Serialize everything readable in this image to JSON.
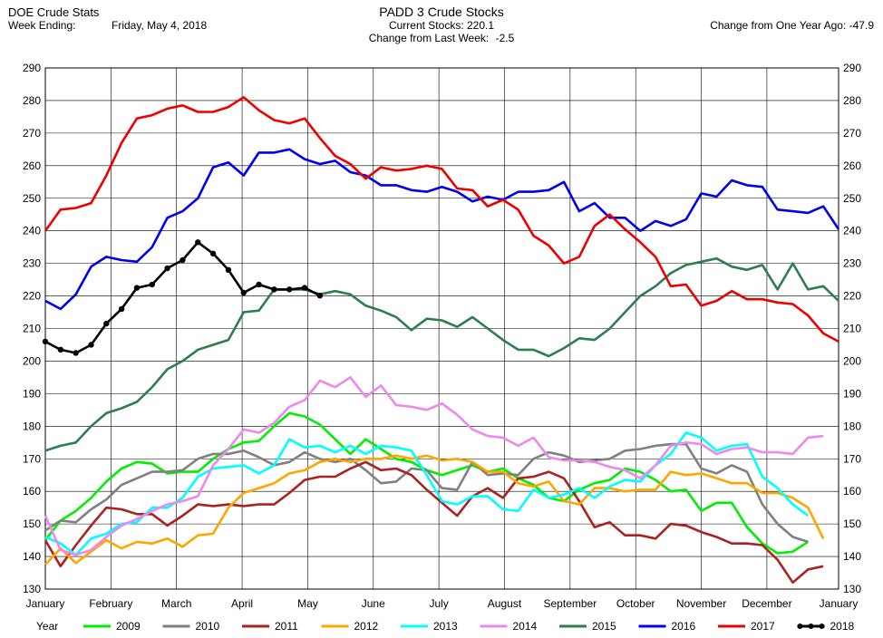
{
  "header": {
    "app_title": "DOE Crude Stats",
    "week_ending_label": "Week Ending:",
    "week_ending_value": "Friday, May 4, 2018",
    "chart_title": "PADD 3 Crude Stocks",
    "current_stocks_label": "Current Stocks:",
    "current_stocks_value": "220.1",
    "change_week_label": "Change from Last Week:",
    "change_week_value": "-2.5",
    "change_year_label": "Change from One Year Ago:",
    "change_year_value": "-47.9"
  },
  "chart_data": {
    "type": "line",
    "title": "PADD 3 Crude Stocks",
    "ylim": [
      130,
      290
    ],
    "y_ticks": [
      130,
      140,
      150,
      160,
      170,
      180,
      190,
      200,
      210,
      220,
      230,
      240,
      250,
      260,
      270,
      280,
      290
    ],
    "x_range": [
      0,
      52
    ],
    "x_tick_labels": [
      {
        "label": "January",
        "week": 0
      },
      {
        "label": "February",
        "week": 4.3
      },
      {
        "label": "March",
        "week": 8.6
      },
      {
        "label": "April",
        "week": 12.9
      },
      {
        "label": "May",
        "week": 17.2
      },
      {
        "label": "June",
        "week": 21.5
      },
      {
        "label": "July",
        "week": 25.8
      },
      {
        "label": "August",
        "week": 30.1
      },
      {
        "label": "September",
        "week": 34.4
      },
      {
        "label": "October",
        "week": 38.7
      },
      {
        "label": "November",
        "week": 43.0
      },
      {
        "label": "December",
        "week": 47.3
      },
      {
        "label": "January",
        "week": 52
      }
    ],
    "grid": true,
    "legend_position": "bottom",
    "legend_title": "Year",
    "series": [
      {
        "name": "2009",
        "color": "#00ee00",
        "markers": false,
        "values": [
          145,
          151,
          154,
          158,
          163,
          167,
          169,
          168.5,
          165.5,
          166,
          166,
          170,
          173,
          175,
          175.5,
          180,
          184,
          183,
          180.5,
          176,
          171.5,
          176,
          173,
          170,
          169,
          166.5,
          165,
          166.5,
          168,
          166,
          167,
          164,
          162,
          158,
          157,
          160.5,
          162.5,
          163.5,
          167,
          166,
          163.5,
          160,
          160.5,
          154,
          156.5,
          156.5,
          149,
          144,
          141,
          141.5,
          144.5
        ]
      },
      {
        "name": "2010",
        "color": "#808080",
        "markers": false,
        "values": [
          148,
          151,
          150.5,
          154.5,
          157.5,
          162,
          164,
          166,
          166,
          166.5,
          170,
          171.5,
          171.5,
          172.5,
          170.5,
          168,
          169,
          172,
          170,
          169,
          170,
          166.5,
          162.5,
          163,
          167,
          166.5,
          161,
          160.5,
          169,
          165,
          165.5,
          165,
          170,
          172,
          171,
          169,
          169.5,
          170,
          172.5,
          173,
          174,
          174.5,
          174.5,
          167,
          165.5,
          168,
          166,
          156,
          150,
          146,
          144.5
        ]
      },
      {
        "name": "2011",
        "color": "#aa2222",
        "markers": false,
        "values": [
          145,
          137,
          143.5,
          149.5,
          155,
          154.5,
          153,
          153,
          149.5,
          152.5,
          156,
          155.5,
          156,
          155.5,
          156,
          156,
          159.5,
          163.5,
          164.5,
          164.5,
          167,
          169,
          166.5,
          167,
          165,
          160.5,
          156.5,
          152.5,
          158.5,
          161,
          158,
          164,
          164.5,
          166,
          164,
          157,
          149,
          150.5,
          146.5,
          146.5,
          145.5,
          150,
          149.5,
          147.5,
          146,
          144,
          144,
          143.5,
          139,
          132,
          136,
          137
        ]
      },
      {
        "name": "2012",
        "color": "#ffa500",
        "markers": false,
        "values": [
          137.5,
          142.5,
          138,
          141.5,
          145,
          142.5,
          144.5,
          144,
          145.5,
          143,
          146.5,
          147,
          155,
          159.5,
          161,
          162.5,
          165.5,
          166.5,
          169,
          170,
          169,
          170,
          170,
          171,
          170,
          171,
          169.5,
          170,
          169,
          166,
          166,
          162.5,
          161.5,
          163,
          157,
          156,
          161,
          161,
          160,
          160.5,
          160.5,
          166,
          165,
          165.5,
          164,
          162.5,
          162.5,
          159.5,
          159.5,
          158,
          155,
          145.5
        ]
      },
      {
        "name": "2013",
        "color": "#00ffff",
        "markers": false,
        "values": [
          146,
          144,
          140.5,
          145.5,
          147,
          150,
          150.5,
          155,
          155,
          158,
          164.5,
          167,
          167.5,
          168,
          165.5,
          168,
          176,
          173.5,
          174,
          172,
          174,
          171.5,
          174,
          173.5,
          172.5,
          165,
          157,
          156,
          158.5,
          158.5,
          154.5,
          154,
          160.5,
          158,
          159,
          161,
          158,
          161.5,
          163.5,
          163,
          168,
          171.5,
          178,
          176.5,
          172.5,
          174,
          174.5,
          164.5,
          161,
          156,
          152.5
        ]
      },
      {
        "name": "2014",
        "color": "#ee88ee",
        "markers": false,
        "values": [
          152.5,
          142,
          140.5,
          142,
          146,
          149.5,
          151.5,
          154,
          156,
          157,
          158.5,
          168,
          173,
          179,
          178,
          181,
          186,
          188,
          194,
          192,
          195,
          189,
          192.5,
          186.5,
          186,
          185,
          187,
          183.5,
          179,
          177,
          176.5,
          174,
          176.5,
          170.5,
          169.5,
          169.5,
          169,
          167.5,
          166.5,
          164,
          168,
          174,
          175,
          174.5,
          171.5,
          173,
          173.5,
          172,
          172,
          171.5,
          176.5,
          177
        ]
      },
      {
        "name": "2015",
        "color": "#2e7d4f",
        "markers": false,
        "values": [
          172.5,
          174,
          175,
          180,
          184,
          185.5,
          187.5,
          192,
          197.5,
          200,
          203.5,
          205,
          206.5,
          215,
          215.5,
          222,
          222,
          222,
          220.5,
          221.5,
          220.5,
          217,
          215.5,
          213.5,
          209.5,
          213,
          212.5,
          210.5,
          213.5,
          210,
          206.5,
          203.5,
          203.5,
          201.5,
          204,
          207,
          206.5,
          210,
          215,
          220,
          223,
          227,
          229.5,
          230.5,
          231.5,
          229,
          228,
          229.5,
          222,
          230,
          222,
          223,
          218.5
        ]
      },
      {
        "name": "2016",
        "color": "#0000ee",
        "markers": false,
        "values": [
          218.5,
          216,
          220.5,
          229,
          232,
          231,
          230.5,
          235,
          244,
          246,
          250,
          259.5,
          261,
          257,
          264,
          264,
          265,
          262,
          260.5,
          261.5,
          258,
          257,
          254,
          254,
          252.5,
          252,
          253.5,
          252,
          249,
          250.5,
          249.5,
          252,
          252,
          252.5,
          255,
          246,
          248.5,
          244,
          244,
          240,
          243,
          241.5,
          243.5,
          251.5,
          250.5,
          255.5,
          254,
          253.5,
          246.5,
          246,
          245.5,
          247.5,
          240.5
        ]
      },
      {
        "name": "2017",
        "color": "#ee0000",
        "markers": false,
        "values": [
          240,
          246.5,
          247,
          248.5,
          257,
          267,
          274.5,
          275.5,
          277.5,
          278.5,
          276.5,
          276.5,
          278,
          281,
          277,
          274,
          273,
          274.5,
          268.5,
          263,
          260.5,
          256,
          259.5,
          258.5,
          259,
          260,
          259,
          253,
          252.5,
          247.5,
          249.5,
          246.5,
          238.5,
          235.5,
          230,
          232,
          241.5,
          245,
          240.5,
          236.5,
          232,
          223,
          223.5,
          217,
          218.5,
          221.5,
          219,
          219,
          218,
          217.5,
          214,
          208.5,
          206
        ]
      },
      {
        "name": "2018",
        "color": "#000000",
        "markers": true,
        "values": [
          206,
          203.5,
          202.5,
          205,
          211.5,
          216,
          222.5,
          223.5,
          228.5,
          231,
          236.5,
          233,
          228,
          221,
          223.5,
          222,
          222,
          222.5,
          220.1
        ]
      }
    ]
  }
}
